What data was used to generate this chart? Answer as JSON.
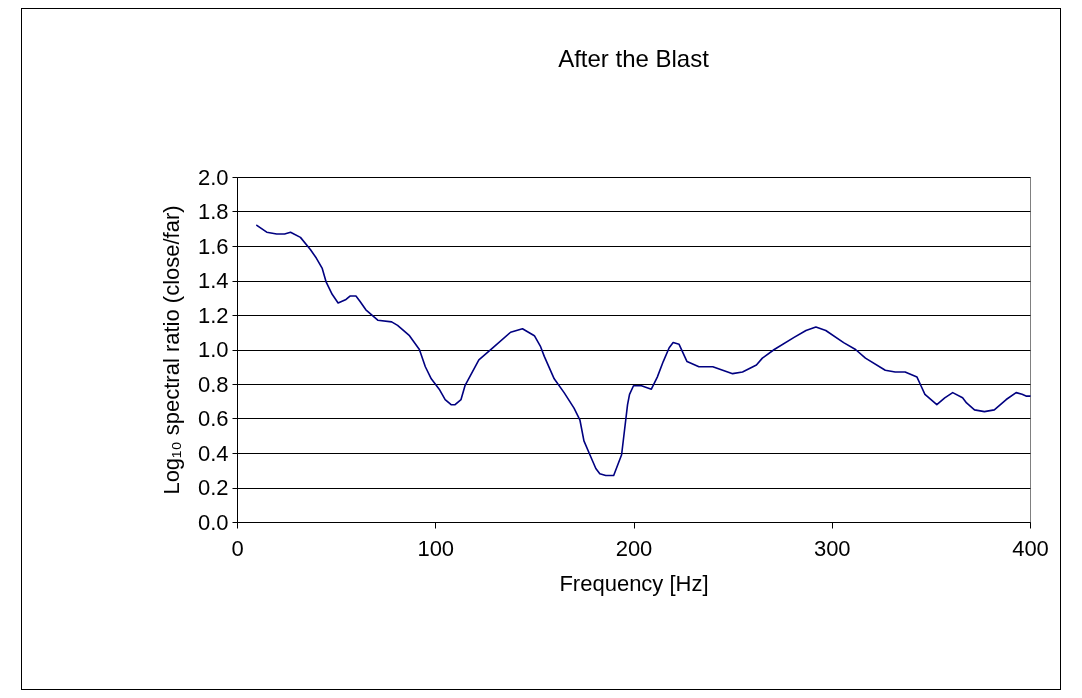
{
  "chart_data": {
    "type": "line",
    "title": "After the Blast",
    "xlabel": "Frequency [Hz]",
    "ylabel": "Log₁₀ spectral ratio (close/far)",
    "x": [
      10,
      15,
      20,
      24,
      27,
      32,
      37,
      40,
      43,
      45,
      48,
      51,
      55,
      57,
      60,
      62,
      65,
      71,
      78,
      81,
      87,
      92,
      95,
      98,
      102,
      105,
      108,
      110,
      113,
      115,
      122,
      129,
      138,
      144,
      150,
      153,
      155,
      160,
      165,
      170,
      173,
      175,
      178,
      181,
      183,
      186,
      190,
      194,
      197,
      198,
      200,
      204,
      209,
      212,
      215,
      218,
      220,
      223,
      227,
      233,
      240,
      250,
      255,
      262,
      265,
      271,
      281,
      287,
      292,
      297,
      306,
      312,
      317,
      327,
      332,
      337,
      343,
      345,
      347,
      353,
      357,
      361,
      366,
      368,
      372,
      377,
      382,
      388,
      393,
      396,
      398,
      400
    ],
    "series": [
      {
        "color": "#000080",
        "values": [
          1.72,
          1.68,
          1.67,
          1.67,
          1.68,
          1.65,
          1.58,
          1.53,
          1.47,
          1.39,
          1.32,
          1.27,
          1.29,
          1.31,
          1.31,
          1.28,
          1.23,
          1.17,
          1.16,
          1.14,
          1.08,
          1.0,
          0.9,
          0.83,
          0.77,
          0.71,
          0.68,
          0.68,
          0.71,
          0.79,
          0.94,
          1.01,
          1.1,
          1.12,
          1.08,
          1.02,
          0.96,
          0.83,
          0.75,
          0.66,
          0.59,
          0.47,
          0.39,
          0.31,
          0.28,
          0.27,
          0.27,
          0.39,
          0.68,
          0.74,
          0.79,
          0.79,
          0.77,
          0.84,
          0.93,
          1.01,
          1.04,
          1.03,
          0.93,
          0.9,
          0.9,
          0.86,
          0.87,
          0.91,
          0.95,
          1.0,
          1.07,
          1.11,
          1.13,
          1.11,
          1.04,
          1.0,
          0.95,
          0.88,
          0.87,
          0.87,
          0.84,
          0.79,
          0.74,
          0.68,
          0.72,
          0.75,
          0.72,
          0.69,
          0.65,
          0.64,
          0.65,
          0.71,
          0.75,
          0.74,
          0.73,
          0.73
        ]
      }
    ],
    "xlim": [
      0,
      400
    ],
    "ylim": [
      0,
      2
    ],
    "xticks": [
      0,
      100,
      200,
      300,
      400
    ],
    "yticks": [
      {
        "value": 0,
        "label": "0.0"
      },
      0.2,
      0.4,
      0.6,
      0.8,
      {
        "value": 1,
        "label": "1.0"
      },
      1.2,
      1.4,
      1.6,
      1.8,
      {
        "value": 2,
        "label": "2.0"
      }
    ],
    "grid": "y",
    "line_style": "solid"
  }
}
